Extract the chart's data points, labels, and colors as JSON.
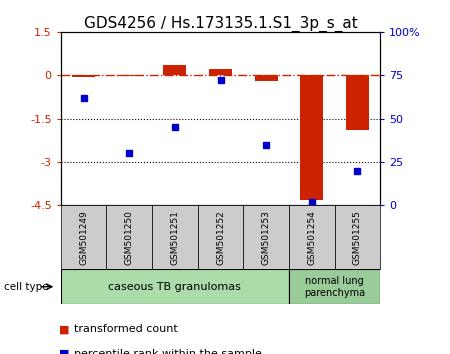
{
  "title": "GDS4256 / Hs.173135.1.S1_3p_s_at",
  "samples": [
    "GSM501249",
    "GSM501250",
    "GSM501251",
    "GSM501252",
    "GSM501253",
    "GSM501254",
    "GSM501255"
  ],
  "transformed_count": [
    -0.05,
    -0.02,
    0.35,
    0.2,
    -0.2,
    -4.3,
    -1.9
  ],
  "percentile_rank": [
    62,
    30,
    45,
    72,
    35,
    2,
    20
  ],
  "ylim_left": [
    -4.5,
    1.5
  ],
  "ylim_right": [
    0,
    100
  ],
  "yticks_left": [
    1.5,
    0,
    -1.5,
    -3,
    -4.5
  ],
  "yticks_right": [
    100,
    75,
    50,
    25,
    0
  ],
  "bar_color": "#cc2200",
  "dot_color": "#0000cc",
  "hline_color": "#cc2200",
  "cell_type_groups": [
    {
      "label": "caseous TB granulomas",
      "start": 0,
      "end": 5,
      "color": "#aaddaa"
    },
    {
      "label": "normal lung\nparenchyma",
      "start": 5,
      "end": 7,
      "color": "#99cc99"
    }
  ],
  "legend_bar_label": "transformed count",
  "legend_dot_label": "percentile rank within the sample",
  "cell_type_label": "cell type",
  "sample_box_color": "#cccccc",
  "title_fontsize": 11,
  "tick_fontsize": 8,
  "sample_fontsize": 6.5,
  "legend_fontsize": 8,
  "ct_fontsize": 8
}
